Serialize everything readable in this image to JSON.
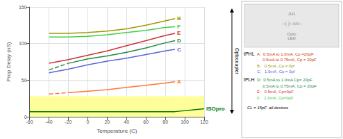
{
  "chart_data": {
    "type": "line",
    "xlabel": "Temperature (C)",
    "ylabel": "Prop Delay (nS)",
    "xlim": [
      -60,
      120
    ],
    "ylim": [
      0,
      150
    ],
    "xticks": [
      -60,
      -40,
      -20,
      0,
      20,
      40,
      60,
      80,
      100,
      120
    ],
    "yticks": [
      0,
      50,
      100,
      150
    ],
    "grid": true,
    "band": {
      "ymin": 0,
      "ymax": 28,
      "color": "#ffff99"
    },
    "series": [
      {
        "name": "B",
        "color": "#999900",
        "line_style": "solid",
        "x": [
          -40,
          -20,
          0,
          20,
          40,
          60,
          80,
          90
        ],
        "values": [
          114,
          114,
          115,
          117,
          120,
          125,
          131,
          134
        ]
      },
      {
        "name": "F",
        "color": "#44cc44",
        "line_style": "solid",
        "x": [
          -40,
          -20,
          0,
          20,
          40,
          60,
          80,
          90
        ],
        "values": [
          109,
          109,
          110,
          112,
          115,
          118,
          122,
          123
        ]
      },
      {
        "name": "E",
        "color": "#cc3333",
        "line_style": "solid",
        "x": [
          -40,
          -20,
          0,
          20,
          40,
          60,
          80,
          90
        ],
        "values": [
          73,
          78,
          84,
          90,
          97,
          104,
          111,
          114
        ]
      },
      {
        "name": "D",
        "color": "#228844",
        "line_style": "solid",
        "x": [
          -20,
          0,
          20,
          40,
          60,
          80,
          90
        ],
        "values": [
          73,
          79,
          83,
          88,
          94,
          101,
          104
        ]
      },
      {
        "color": "#228844",
        "line_style": "dashed",
        "x": [
          -40,
          -20
        ],
        "values": [
          64,
          73
        ]
      },
      {
        "name": "C",
        "color": "#5566dd",
        "line_style": "solid",
        "x": [
          -40,
          -20,
          0,
          20,
          40,
          60,
          80,
          90
        ],
        "values": [
          60,
          65,
          71,
          76,
          80,
          85,
          90,
          92
        ]
      },
      {
        "name": "A",
        "color": "#ff7733",
        "line_style": "solid",
        "x": [
          -20,
          0,
          20,
          40,
          60,
          80,
          90
        ],
        "values": [
          33,
          35,
          37,
          40,
          43,
          46,
          48
        ]
      },
      {
        "color": "#ff7733",
        "line_style": "dashed",
        "x": [
          -40,
          -20
        ],
        "values": [
          31,
          33
        ]
      },
      {
        "name": "ISOpro",
        "color": "#007700",
        "line_style": "solid",
        "x": [
          -60,
          90,
          120
        ],
        "values": [
          7,
          7,
          11
        ]
      }
    ],
    "annotations": {
      "arrow_label": "Optocoupler",
      "diagram": [
        {
          "text": "JU1",
          "color": "gray"
        },
        {
          "text": "─┤├─/\\/\\/─",
          "color": "gray"
        },
        {
          "text": "Opto\nLED",
          "color": "gray"
        }
      ],
      "groups": [
        {
          "heading": "tPHL",
          "entries": [
            {
              "text": "A:  0.5mA to 1.0mA, Cp =20pF",
              "color": "#cc3300"
            },
            {
              "text": "     0.5mA to 0.75mA, Cp = 20pF",
              "color": "#cc3300"
            },
            {
              "text": "B    0.5mA, Cp = 0pf",
              "color": "#999900"
            },
            {
              "text": "C:   1.0mA, Cp = 0pf",
              "color": "#5566dd"
            }
          ]
        },
        {
          "heading": "tPLH",
          "entries": [
            {
              "text": "D:  0.5mA to 1.0mA Cp= 20pF",
              "color": "#228844"
            },
            {
              "text": "     0.5mA to 0.75mA, Cp = 20pF",
              "color": "#228844"
            },
            {
              "text": "E:   0.5mA, Cp=0pF",
              "color": "#cc3333"
            },
            {
              "text": "F:   1.0mA, Cp=0pF",
              "color": "#44cc44"
            }
          ]
        }
      ],
      "note": "CL = 15pF  all devices"
    }
  }
}
